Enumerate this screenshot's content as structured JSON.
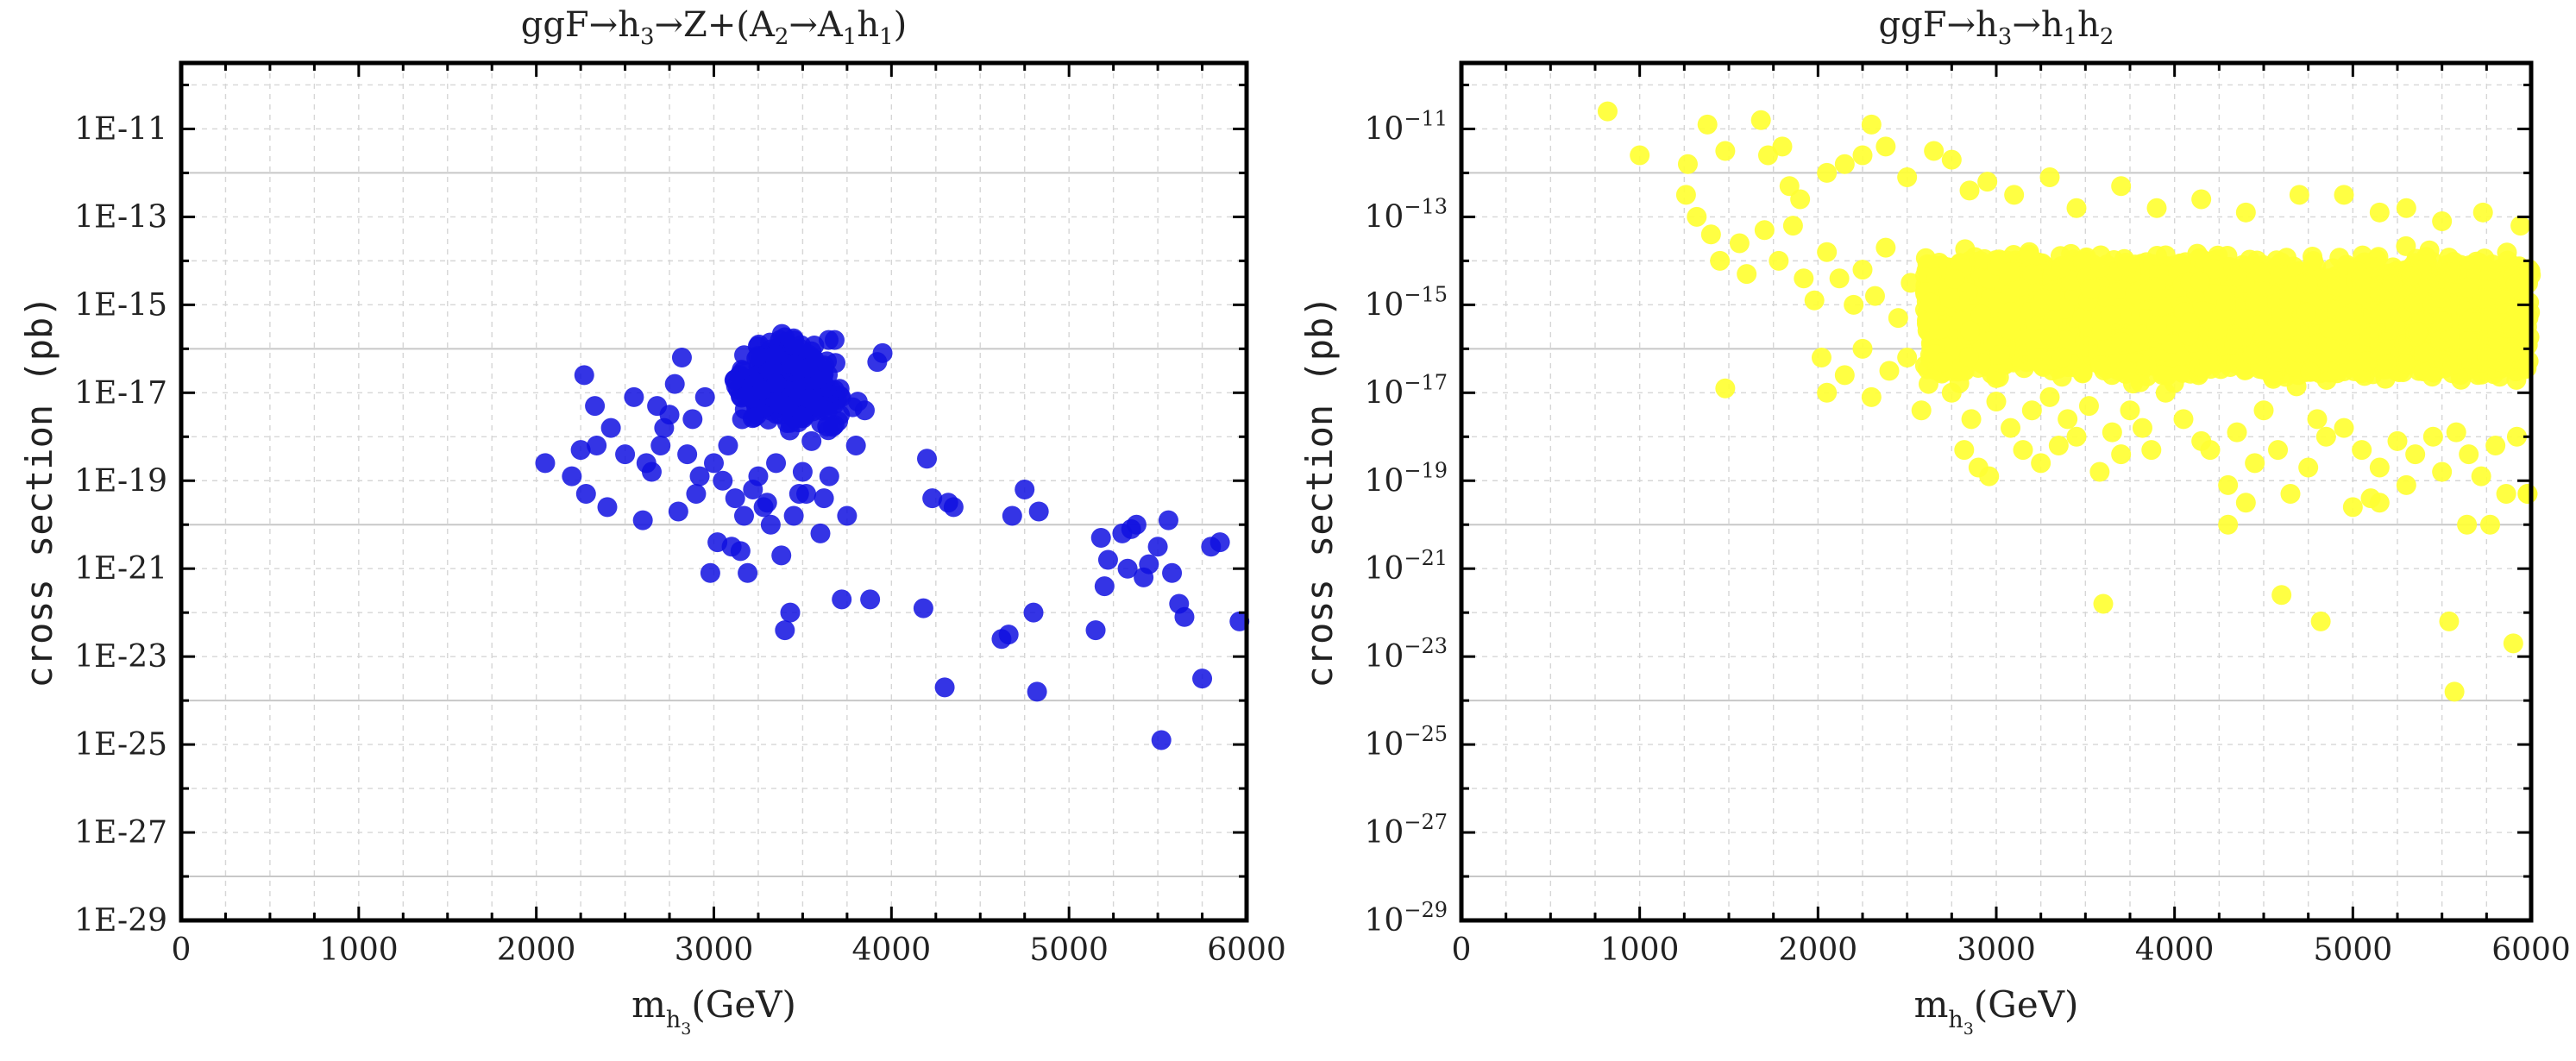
{
  "chart_data": [
    {
      "type": "scatter",
      "title": "ggF→h₃→Z+(A₂→A₁h₁)",
      "title_parts": [
        {
          "text": "ggF→h"
        },
        {
          "text": "3",
          "sub": true
        },
        {
          "text": "→Z+(A"
        },
        {
          "text": "2",
          "sub": true
        },
        {
          "text": "→A"
        },
        {
          "text": "1",
          "sub": true
        },
        {
          "text": "h"
        },
        {
          "text": "1",
          "sub": true
        },
        {
          "text": ")"
        }
      ],
      "xlabel": "m_h3(GeV)",
      "xlabel_main": "m",
      "xlabel_sub": "h",
      "xlabel_subsub": "3",
      "xlabel_unit": "(GeV)",
      "ylabel": "cross section (pb)",
      "xlim": [
        0,
        6000
      ],
      "ylim_log10": [
        -29,
        -9.5
      ],
      "yscale": "log",
      "ytick_style": "E",
      "xticks": [
        "0",
        "1000",
        "2000",
        "3000",
        "4000",
        "5000",
        "6000"
      ],
      "yticks": [
        "1E-11",
        "1E-13",
        "1E-15",
        "1E-17",
        "1E-19",
        "1E-21",
        "1E-23",
        "1E-25",
        "1E-27",
        "1E-29"
      ],
      "grid": true,
      "marker_color": "#1010e0",
      "series": [
        {
          "name": "points",
          "cluster": {
            "center_x": 3420,
            "center_log10_y": -16.8,
            "spread_x": 240,
            "spread_log10_y": 0.7,
            "count": 380
          },
          "points": [
            [
              2050,
              -18.6
            ],
            [
              2200,
              -18.9
            ],
            [
              2280,
              -19.3
            ],
            [
              2250,
              -18.3
            ],
            [
              2330,
              -17.3
            ],
            [
              2270,
              -16.6
            ],
            [
              2400,
              -19.6
            ],
            [
              2340,
              -18.2
            ],
            [
              2420,
              -17.8
            ],
            [
              2500,
              -18.4
            ],
            [
              2550,
              -17.1
            ],
            [
              2600,
              -19.9
            ],
            [
              2620,
              -18.6
            ],
            [
              2650,
              -18.8
            ],
            [
              2680,
              -17.3
            ],
            [
              2700,
              -18.2
            ],
            [
              2720,
              -17.8
            ],
            [
              2750,
              -17.5
            ],
            [
              2780,
              -16.8
            ],
            [
              2800,
              -19.7
            ],
            [
              2820,
              -16.2
            ],
            [
              2850,
              -18.4
            ],
            [
              2880,
              -17.6
            ],
            [
              2900,
              -19.3
            ],
            [
              2920,
              -18.9
            ],
            [
              2950,
              -17.1
            ],
            [
              2980,
              -21.1
            ],
            [
              3000,
              -18.6
            ],
            [
              3020,
              -20.4
            ],
            [
              3050,
              -19.0
            ],
            [
              3080,
              -18.2
            ],
            [
              3100,
              -20.5
            ],
            [
              3120,
              -19.4
            ],
            [
              3150,
              -20.6
            ],
            [
              3170,
              -19.8
            ],
            [
              3190,
              -21.1
            ],
            [
              3220,
              -19.2
            ],
            [
              3250,
              -18.9
            ],
            [
              3280,
              -19.6
            ],
            [
              3300,
              -19.5
            ],
            [
              3320,
              -20.0
            ],
            [
              3350,
              -18.6
            ],
            [
              3380,
              -20.7
            ],
            [
              3400,
              -22.4
            ],
            [
              3430,
              -22.0
            ],
            [
              3450,
              -19.8
            ],
            [
              3480,
              -19.3
            ],
            [
              3500,
              -18.8
            ],
            [
              3520,
              -19.3
            ],
            [
              3550,
              -18.1
            ],
            [
              3600,
              -20.2
            ],
            [
              3620,
              -19.4
            ],
            [
              3650,
              -18.9
            ],
            [
              3680,
              -15.8
            ],
            [
              3720,
              -21.7
            ],
            [
              3750,
              -19.8
            ],
            [
              3800,
              -18.2
            ],
            [
              3850,
              -17.4
            ],
            [
              3880,
              -21.7
            ],
            [
              3920,
              -16.3
            ],
            [
              3950,
              -16.1
            ],
            [
              4180,
              -21.9
            ],
            [
              4200,
              -18.5
            ],
            [
              4230,
              -19.4
            ],
            [
              4300,
              -23.7
            ],
            [
              4320,
              -19.5
            ],
            [
              4350,
              -19.6
            ],
            [
              4620,
              -22.6
            ],
            [
              4660,
              -22.5
            ],
            [
              4680,
              -19.8
            ],
            [
              4750,
              -19.2
            ],
            [
              4800,
              -22.0
            ],
            [
              4820,
              -23.8
            ],
            [
              4830,
              -19.7
            ],
            [
              5150,
              -22.4
            ],
            [
              5180,
              -20.3
            ],
            [
              5200,
              -21.4
            ],
            [
              5220,
              -20.8
            ],
            [
              5300,
              -20.2
            ],
            [
              5330,
              -21.0
            ],
            [
              5350,
              -20.1
            ],
            [
              5380,
              -20.0
            ],
            [
              5420,
              -21.2
            ],
            [
              5450,
              -20.9
            ],
            [
              5500,
              -20.5
            ],
            [
              5520,
              -24.9
            ],
            [
              5560,
              -19.9
            ],
            [
              5580,
              -21.1
            ],
            [
              5620,
              -21.8
            ],
            [
              5650,
              -22.1
            ],
            [
              5750,
              -23.5
            ],
            [
              5800,
              -20.5
            ],
            [
              5850,
              -20.4
            ],
            [
              5960,
              -22.2
            ]
          ]
        }
      ]
    },
    {
      "type": "scatter",
      "title": "ggF→h₃→h₁h₂",
      "title_parts": [
        {
          "text": "ggF→h"
        },
        {
          "text": "3",
          "sub": true
        },
        {
          "text": "→h"
        },
        {
          "text": "1",
          "sub": true
        },
        {
          "text": "h"
        },
        {
          "text": "2",
          "sub": true
        }
      ],
      "xlabel": "m_h3(GeV)",
      "xlabel_main": "m",
      "xlabel_sub": "h",
      "xlabel_subsub": "3",
      "xlabel_unit": "(GeV)",
      "ylabel": "cross section (pb)",
      "xlim": [
        0,
        6000
      ],
      "ylim_log10": [
        -29,
        -9.5
      ],
      "yscale": "log",
      "ytick_style": "power",
      "xticks": [
        "0",
        "1000",
        "2000",
        "3000",
        "4000",
        "5000",
        "6000"
      ],
      "yticks": [
        {
          "base": "10",
          "exp": "−11"
        },
        {
          "base": "10",
          "exp": "−13"
        },
        {
          "base": "10",
          "exp": "−15"
        },
        {
          "base": "10",
          "exp": "−17"
        },
        {
          "base": "10",
          "exp": "−19"
        },
        {
          "base": "10",
          "exp": "−21"
        },
        {
          "base": "10",
          "exp": "−23"
        },
        {
          "base": "10",
          "exp": "−25"
        },
        {
          "base": "10",
          "exp": "−27"
        },
        {
          "base": "10",
          "exp": "−29"
        }
      ],
      "grid": true,
      "marker_color": "#ffff33",
      "series": [
        {
          "name": "points",
          "band": {
            "x_from": 2600,
            "x_to": 6000,
            "log10_y_from": -16.5,
            "log10_y_to": -14.0,
            "count": 2300
          },
          "points": [
            [
              820,
              -10.6
            ],
            [
              1000,
              -11.6
            ],
            [
              1270,
              -11.8
            ],
            [
              1380,
              -10.9
            ],
            [
              1480,
              -11.5
            ],
            [
              1680,
              -10.8
            ],
            [
              1720,
              -11.6
            ],
            [
              1800,
              -11.4
            ],
            [
              1840,
              -12.3
            ],
            [
              1900,
              -12.6
            ],
            [
              2050,
              -12.0
            ],
            [
              2150,
              -11.8
            ],
            [
              2250,
              -11.6
            ],
            [
              2300,
              -10.9
            ],
            [
              2380,
              -11.4
            ],
            [
              2500,
              -12.1
            ],
            [
              2650,
              -11.5
            ],
            [
              2750,
              -11.7
            ],
            [
              2850,
              -12.4
            ],
            [
              2950,
              -12.2
            ],
            [
              3100,
              -12.5
            ],
            [
              3300,
              -12.1
            ],
            [
              3450,
              -12.8
            ],
            [
              3700,
              -12.3
            ],
            [
              3900,
              -12.8
            ],
            [
              4150,
              -12.6
            ],
            [
              4400,
              -12.9
            ],
            [
              4700,
              -12.5
            ],
            [
              4950,
              -12.5
            ],
            [
              5150,
              -12.9
            ],
            [
              5300,
              -12.8
            ],
            [
              5500,
              -13.1
            ],
            [
              5730,
              -12.9
            ],
            [
              5940,
              -13.2
            ],
            [
              1260,
              -12.5
            ],
            [
              1320,
              -13.0
            ],
            [
              1400,
              -13.4
            ],
            [
              1450,
              -14.0
            ],
            [
              1560,
              -13.6
            ],
            [
              1600,
              -14.3
            ],
            [
              1700,
              -13.3
            ],
            [
              1780,
              -14.0
            ],
            [
              1860,
              -13.2
            ],
            [
              1920,
              -14.4
            ],
            [
              1980,
              -14.9
            ],
            [
              2050,
              -13.8
            ],
            [
              2120,
              -14.4
            ],
            [
              2200,
              -15.0
            ],
            [
              2250,
              -14.2
            ],
            [
              2320,
              -14.8
            ],
            [
              2380,
              -13.7
            ],
            [
              2450,
              -15.3
            ],
            [
              2520,
              -14.5
            ],
            [
              1480,
              -16.9
            ],
            [
              2020,
              -16.2
            ],
            [
              2050,
              -17.0
            ],
            [
              2150,
              -16.6
            ],
            [
              2250,
              -16.0
            ],
            [
              2300,
              -17.1
            ],
            [
              2400,
              -16.5
            ],
            [
              2500,
              -16.2
            ],
            [
              2580,
              -17.4
            ],
            [
              2620,
              -16.8
            ],
            [
              2700,
              -16.3
            ],
            [
              2750,
              -17.0
            ],
            [
              2820,
              -18.3
            ],
            [
              2860,
              -17.6
            ],
            [
              2900,
              -18.7
            ],
            [
              2960,
              -18.9
            ],
            [
              3000,
              -17.2
            ],
            [
              3080,
              -17.8
            ],
            [
              3150,
              -18.3
            ],
            [
              3200,
              -17.4
            ],
            [
              3250,
              -18.6
            ],
            [
              3300,
              -17.1
            ],
            [
              3350,
              -18.2
            ],
            [
              3400,
              -17.6
            ],
            [
              3450,
              -18.0
            ],
            [
              3520,
              -17.3
            ],
            [
              3580,
              -18.8
            ],
            [
              3650,
              -17.9
            ],
            [
              3700,
              -18.4
            ],
            [
              3750,
              -17.4
            ],
            [
              3820,
              -17.8
            ],
            [
              3870,
              -18.3
            ],
            [
              3950,
              -17.0
            ],
            [
              4050,
              -17.6
            ],
            [
              4150,
              -18.1
            ],
            [
              4200,
              -18.3
            ],
            [
              4300,
              -19.1
            ],
            [
              4350,
              -17.9
            ],
            [
              4450,
              -18.6
            ],
            [
              4500,
              -17.4
            ],
            [
              4580,
              -18.3
            ],
            [
              4650,
              -19.3
            ],
            [
              4750,
              -18.7
            ],
            [
              4800,
              -17.6
            ],
            [
              4850,
              -18.0
            ],
            [
              4950,
              -17.8
            ],
            [
              5050,
              -18.3
            ],
            [
              5100,
              -19.4
            ],
            [
              5150,
              -18.7
            ],
            [
              5250,
              -18.1
            ],
            [
              5300,
              -19.1
            ],
            [
              5350,
              -18.4
            ],
            [
              5450,
              -18.0
            ],
            [
              5500,
              -18.8
            ],
            [
              5580,
              -17.9
            ],
            [
              5650,
              -18.4
            ],
            [
              5720,
              -18.9
            ],
            [
              5800,
              -18.2
            ],
            [
              5860,
              -19.3
            ],
            [
              5920,
              -18.0
            ],
            [
              5980,
              -19.3
            ],
            [
              3600,
              -21.8
            ],
            [
              4300,
              -20.0
            ],
            [
              4400,
              -19.5
            ],
            [
              4600,
              -21.6
            ],
            [
              4820,
              -22.2
            ],
            [
              5000,
              -19.6
            ],
            [
              5150,
              -19.5
            ],
            [
              5540,
              -22.2
            ],
            [
              5570,
              -23.8
            ],
            [
              5640,
              -20.0
            ],
            [
              5770,
              -20.0
            ],
            [
              5900,
              -22.7
            ],
            [
              5980,
              -19.3
            ]
          ]
        }
      ]
    }
  ]
}
